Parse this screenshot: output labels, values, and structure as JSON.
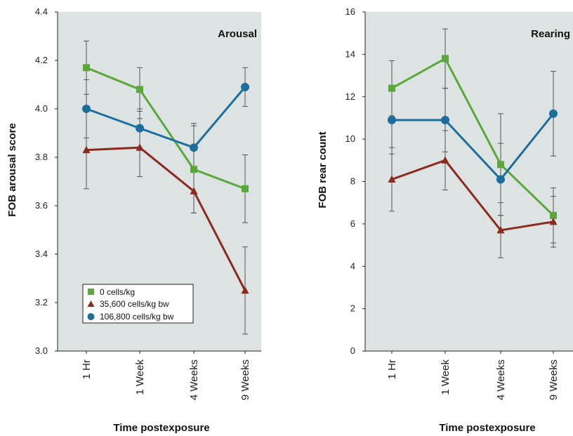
{
  "legend": [
    {
      "label": "0 cells/kg",
      "color": "#5aa83a",
      "marker": "square"
    },
    {
      "label": "35,600 cells/kg bw",
      "color": "#8b2a1e",
      "marker": "triangle"
    },
    {
      "label": "106,800 cells/kg bw",
      "color": "#1c6e9c",
      "marker": "circle"
    }
  ],
  "chart_data": [
    {
      "type": "line",
      "title": "Arousal",
      "xlabel": "Time postexposure",
      "ylabel": "FOB arousal score",
      "categories": [
        "1 Hr",
        "1 Week",
        "4 Weeks",
        "9 Weeks"
      ],
      "ylim": [
        3.0,
        4.4
      ],
      "yticks": [
        "3.0",
        "3.2",
        "3.4",
        "3.6",
        "3.8",
        "4.0",
        "4.2",
        "4.4"
      ],
      "grid": false,
      "legend_position": "bottom-left",
      "series": [
        {
          "name": "0 cells/kg",
          "color": "#5aa83a",
          "marker": "square",
          "values": [
            4.17,
            4.08,
            3.75,
            3.67
          ],
          "errors": [
            0.11,
            0.09,
            0.18,
            0.14
          ]
        },
        {
          "name": "35,600 cells/kg bw",
          "color": "#8b2a1e",
          "marker": "triangle",
          "values": [
            3.83,
            3.84,
            3.66,
            3.25
          ],
          "errors": [
            0.16,
            0.12,
            0.09,
            0.18
          ]
        },
        {
          "name": "106,800 cells/kg bw",
          "color": "#1c6e9c",
          "marker": "circle",
          "values": [
            4.0,
            3.92,
            3.84,
            4.09
          ],
          "errors": [
            0.12,
            0.08,
            0.1,
            0.08
          ]
        }
      ]
    },
    {
      "type": "line",
      "title": "Rearing",
      "xlabel": "Time postexposure",
      "ylabel": "FOB rear count",
      "categories": [
        "1 Hr",
        "1 Week",
        "4 Weeks",
        "9 Weeks"
      ],
      "ylim": [
        0,
        16
      ],
      "yticks": [
        "0",
        "2",
        "4",
        "6",
        "8",
        "10",
        "12",
        "14",
        "16"
      ],
      "grid": false,
      "series": [
        {
          "name": "0 cells/kg",
          "color": "#5aa83a",
          "marker": "square",
          "values": [
            12.4,
            13.8,
            8.8,
            6.4
          ],
          "errors": [
            1.3,
            1.4,
            2.4,
            1.3
          ]
        },
        {
          "name": "35,600 cells/kg bw",
          "color": "#8b2a1e",
          "marker": "triangle",
          "values": [
            8.1,
            9.0,
            5.7,
            6.1
          ],
          "errors": [
            1.5,
            1.4,
            1.3,
            1.2
          ]
        },
        {
          "name": "106,800 cells/kg bw",
          "color": "#1c6e9c",
          "marker": "circle",
          "values": [
            10.9,
            10.9,
            8.1,
            11.2
          ],
          "errors": [
            1.6,
            1.5,
            1.7,
            2.0
          ]
        }
      ]
    }
  ]
}
